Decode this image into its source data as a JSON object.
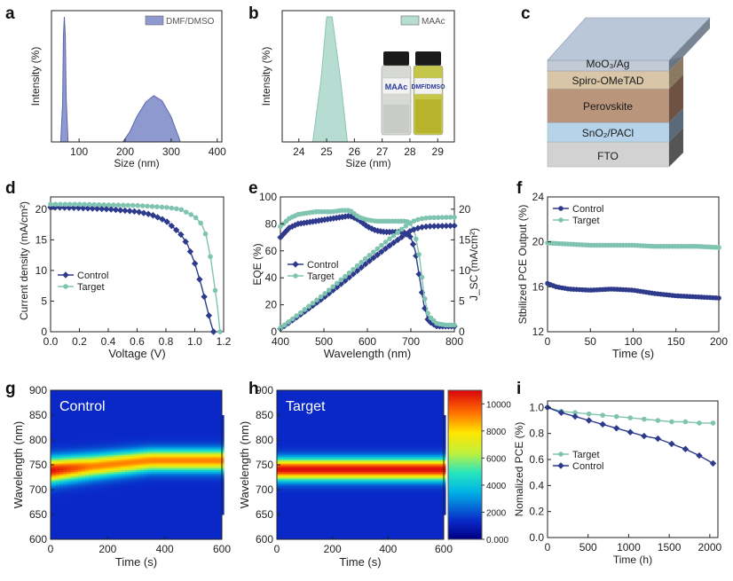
{
  "panels": [
    {
      "id": "a",
      "letter": "a"
    },
    {
      "id": "b",
      "letter": "b"
    },
    {
      "id": "c",
      "letter": "c"
    },
    {
      "id": "d",
      "letter": "d"
    },
    {
      "id": "e",
      "letter": "e"
    },
    {
      "id": "f",
      "letter": "f"
    },
    {
      "id": "g",
      "letter": "g"
    },
    {
      "id": "h",
      "letter": "h"
    },
    {
      "id": "i",
      "letter": "i"
    }
  ],
  "colors": {
    "control": "#2e3a8c",
    "target": "#7fc4b0",
    "dls_a": "#8e99d0",
    "dls_b": "#b7ddd2",
    "axis": "#222222"
  },
  "chart_data": [
    {
      "panel": "a",
      "type": "area",
      "xlabel": "Size (nm)",
      "ylabel": "Intensity (%)",
      "xlim": [
        40,
        410
      ],
      "ylim": [
        0,
        1.05
      ],
      "xticks": [
        100,
        200,
        300,
        400
      ],
      "legend": [
        "DMF/DMSO"
      ],
      "legend_position": "top-right",
      "series": [
        {
          "name": "DMF/DMSO",
          "color": "#8e99d0",
          "points": [
            [
              60,
              0
            ],
            [
              64,
              0.3
            ],
            [
              66,
              0.85
            ],
            [
              68,
              1.0
            ],
            [
              70,
              0.85
            ],
            [
              72,
              0.35
            ],
            [
              76,
              0
            ],
            [
              195,
              0
            ],
            [
              210,
              0.08
            ],
            [
              225,
              0.2
            ],
            [
              245,
              0.32
            ],
            [
              262,
              0.37
            ],
            [
              280,
              0.33
            ],
            [
              300,
              0.2
            ],
            [
              320,
              0
            ],
            [
              410,
              0
            ]
          ]
        }
      ]
    },
    {
      "panel": "b",
      "type": "area",
      "xlabel": "Size (nm)",
      "ylabel": "Intensity (%)",
      "xlim": [
        23.4,
        29.6
      ],
      "ylim": [
        0,
        1.05
      ],
      "xticks": [
        24,
        25,
        26,
        27,
        28,
        29
      ],
      "legend": [
        "MAAc"
      ],
      "legend_position": "top-right",
      "inset": "photo of two vials labeled MAAc and DMF/DMSO",
      "vial_labels": [
        "MAAc",
        "DMF/DMSO"
      ],
      "series": [
        {
          "name": "MAAc",
          "color": "#b7ddd2",
          "points": [
            [
              24.5,
              0
            ],
            [
              24.8,
              0.5
            ],
            [
              25.0,
              1.0
            ],
            [
              25.2,
              1.0
            ],
            [
              25.5,
              0.5
            ],
            [
              25.75,
              0
            ],
            [
              29.6,
              0
            ]
          ]
        }
      ]
    },
    {
      "panel": "c",
      "type": "diagram",
      "layers": [
        "MoO₃/Ag",
        "Spiro-OMeTAD",
        "Perovskite",
        "SnO₂/PACl",
        "FTO"
      ]
    },
    {
      "panel": "d",
      "type": "line",
      "xlabel": "Voltage (V)",
      "ylabel": "Current density (mA/cm²)",
      "xlim": [
        0,
        1.2
      ],
      "ylim": [
        0,
        22
      ],
      "xticks": [
        0.0,
        0.2,
        0.4,
        0.6,
        0.8,
        1.0,
        1.2
      ],
      "yticks": [
        0,
        5,
        10,
        15,
        20
      ],
      "legend": [
        "Control",
        "Target"
      ],
      "legend_position": "bottom-left",
      "series": [
        {
          "name": "Control",
          "color": "#2e3a8c",
          "marker": "diamond",
          "points": [
            [
              0,
              20.3
            ],
            [
              0.2,
              20.2
            ],
            [
              0.4,
              20.0
            ],
            [
              0.6,
              19.6
            ],
            [
              0.7,
              19.1
            ],
            [
              0.8,
              18.1
            ],
            [
              0.9,
              16.0
            ],
            [
              0.95,
              14.2
            ],
            [
              1.0,
              11.2
            ],
            [
              1.05,
              7.2
            ],
            [
              1.08,
              4.3
            ],
            [
              1.11,
              1.5
            ],
            [
              1.13,
              0
            ]
          ]
        },
        {
          "name": "Target",
          "color": "#7fc4b0",
          "marker": "circle",
          "points": [
            [
              0,
              20.8
            ],
            [
              0.2,
              20.8
            ],
            [
              0.4,
              20.7
            ],
            [
              0.6,
              20.6
            ],
            [
              0.8,
              20.3
            ],
            [
              0.9,
              20.0
            ],
            [
              1.0,
              18.8
            ],
            [
              1.05,
              17.5
            ],
            [
              1.08,
              15.6
            ],
            [
              1.11,
              12.0
            ],
            [
              1.14,
              7.0
            ],
            [
              1.16,
              3.5
            ],
            [
              1.175,
              0
            ]
          ]
        }
      ]
    },
    {
      "panel": "e",
      "type": "line",
      "xlabel": "Wavelength (nm)",
      "ylabel": "EQE (%)",
      "ylabel_right": "J_SC (mA/cm²)",
      "xlim": [
        400,
        800
      ],
      "ylim": [
        0,
        100
      ],
      "ylim_right": [
        0,
        22
      ],
      "xticks": [
        400,
        500,
        600,
        700,
        800
      ],
      "yticks": [
        0,
        20,
        40,
        60,
        80,
        100
      ],
      "yticks_right": [
        0,
        5,
        10,
        15,
        20
      ],
      "legend": [
        "Control",
        "Target"
      ],
      "legend_position": "bottom-left",
      "series": [
        {
          "name": "Control",
          "axis": "left",
          "color": "#2e3a8c",
          "marker": "diamond",
          "points": [
            [
              400,
              70
            ],
            [
              420,
              77
            ],
            [
              440,
              80
            ],
            [
              460,
              81
            ],
            [
              480,
              82
            ],
            [
              500,
              83
            ],
            [
              520,
              84
            ],
            [
              540,
              85
            ],
            [
              560,
              86
            ],
            [
              580,
              83
            ],
            [
              600,
              78
            ],
            [
              620,
              75
            ],
            [
              640,
              74
            ],
            [
              660,
              74
            ],
            [
              680,
              74
            ],
            [
              690,
              73
            ],
            [
              700,
              70
            ],
            [
              710,
              60
            ],
            [
              720,
              40
            ],
            [
              730,
              20
            ],
            [
              740,
              8
            ],
            [
              760,
              4
            ],
            [
              780,
              4
            ],
            [
              800,
              4
            ]
          ]
        },
        {
          "name": "Target",
          "axis": "left",
          "color": "#7fc4b0",
          "marker": "circle",
          "points": [
            [
              400,
              78
            ],
            [
              420,
              84
            ],
            [
              440,
              87
            ],
            [
              460,
              88
            ],
            [
              480,
              89
            ],
            [
              500,
              89
            ],
            [
              520,
              89
            ],
            [
              540,
              90
            ],
            [
              560,
              90
            ],
            [
              580,
              85
            ],
            [
              600,
              83
            ],
            [
              620,
              82
            ],
            [
              640,
              82
            ],
            [
              660,
              82
            ],
            [
              680,
              82
            ],
            [
              690,
              82
            ],
            [
              700,
              80
            ],
            [
              710,
              72
            ],
            [
              720,
              55
            ],
            [
              730,
              28
            ],
            [
              740,
              12
            ],
            [
              760,
              6
            ],
            [
              780,
              5
            ],
            [
              800,
              5
            ]
          ]
        },
        {
          "name": "Control",
          "axis": "right",
          "color": "#2e3a8c",
          "marker": "diamond",
          "points": [
            [
              400,
              0.5
            ],
            [
              450,
              3.0
            ],
            [
              500,
              5.6
            ],
            [
              550,
              8.4
            ],
            [
              600,
              11.3
            ],
            [
              650,
              14.0
            ],
            [
              700,
              16.5
            ],
            [
              720,
              17.0
            ],
            [
              740,
              17.2
            ],
            [
              800,
              17.3
            ]
          ]
        },
        {
          "name": "Target",
          "axis": "right",
          "color": "#7fc4b0",
          "marker": "circle",
          "points": [
            [
              400,
              0.6
            ],
            [
              450,
              3.3
            ],
            [
              500,
              6.1
            ],
            [
              550,
              9.1
            ],
            [
              600,
              12.2
            ],
            [
              650,
              15.1
            ],
            [
              700,
              17.9
            ],
            [
              720,
              18.4
            ],
            [
              740,
              18.6
            ],
            [
              800,
              18.7
            ]
          ]
        }
      ]
    },
    {
      "panel": "f",
      "type": "line",
      "xlabel": "Time (s)",
      "ylabel": "Stbilized PCE Output (%)",
      "xlim": [
        0,
        200
      ],
      "ylim": [
        12,
        24
      ],
      "xticks": [
        0,
        50,
        100,
        150,
        200
      ],
      "yticks": [
        12,
        16,
        20,
        24
      ],
      "legend": [
        "Control",
        "Target"
      ],
      "legend_position": "top-left",
      "series": [
        {
          "name": "Control",
          "color": "#2e3a8c",
          "marker": "circle",
          "points": [
            [
              0,
              16.3
            ],
            [
              10,
              16.0
            ],
            [
              25,
              15.8
            ],
            [
              50,
              15.7
            ],
            [
              75,
              15.8
            ],
            [
              100,
              15.7
            ],
            [
              125,
              15.4
            ],
            [
              150,
              15.2
            ],
            [
              175,
              15.1
            ],
            [
              200,
              15.0
            ]
          ]
        },
        {
          "name": "Target",
          "color": "#7fc4b0",
          "marker": "circle",
          "points": [
            [
              0,
              19.9
            ],
            [
              25,
              19.8
            ],
            [
              50,
              19.7
            ],
            [
              75,
              19.7
            ],
            [
              100,
              19.7
            ],
            [
              125,
              19.6
            ],
            [
              150,
              19.6
            ],
            [
              175,
              19.6
            ],
            [
              200,
              19.5
            ]
          ]
        }
      ]
    },
    {
      "panel": "g",
      "type": "heatmap",
      "title": "Control",
      "xlabel": "Time (s)",
      "ylabel": "Wavelength (nm)",
      "xlim": [
        0,
        600
      ],
      "ylim": [
        600,
        900
      ],
      "xticks": [
        0,
        200,
        400,
        600
      ],
      "yticks": [
        600,
        650,
        700,
        750,
        800,
        850,
        900
      ],
      "peak_center_start_nm": 738,
      "peak_center_end_nm": 758,
      "peak_width_start_nm": 25,
      "peak_width_end_nm": 22
    },
    {
      "panel": "h",
      "type": "heatmap",
      "title": "Target",
      "xlabel": "Time (s)",
      "ylabel": "Wavelength (nm)",
      "xlim": [
        0,
        600
      ],
      "ylim": [
        600,
        900
      ],
      "xticks": [
        0,
        200,
        400,
        600
      ],
      "yticks": [
        600,
        650,
        700,
        750,
        800,
        850,
        900
      ],
      "peak_center_start_nm": 740,
      "peak_center_end_nm": 740,
      "peak_width_start_nm": 22,
      "peak_width_end_nm": 22,
      "colorbar": {
        "min": 0,
        "max": 11000,
        "ticks": [
          "0.000",
          "2000",
          "4000",
          "6000",
          "8000",
          "10000"
        ],
        "tick_values": [
          0,
          2000,
          4000,
          6000,
          8000,
          10000
        ]
      }
    },
    {
      "panel": "i",
      "type": "line",
      "xlabel": "Time (h)",
      "ylabel": "Nomalized PCE (%)",
      "xlim": [
        0,
        2100
      ],
      "ylim": [
        0,
        1.05
      ],
      "xticks": [
        0,
        500,
        1000,
        1500,
        2000
      ],
      "yticks": [
        "0.0",
        "0.2",
        "0.4",
        "0.6",
        "0.8",
        "1.0"
      ],
      "ytick_values": [
        0,
        0.2,
        0.4,
        0.6,
        0.8,
        1.0
      ],
      "legend": [
        "Target",
        "Control"
      ],
      "legend_position": "bottom-left",
      "series": [
        {
          "name": "Target",
          "color": "#7fc4b0",
          "marker": "circle",
          "points": [
            [
              0,
              1.0
            ],
            [
              170,
              0.97
            ],
            [
              340,
              0.96
            ],
            [
              510,
              0.95
            ],
            [
              680,
              0.94
            ],
            [
              850,
              0.93
            ],
            [
              1020,
              0.92
            ],
            [
              1190,
              0.91
            ],
            [
              1360,
              0.9
            ],
            [
              1530,
              0.89
            ],
            [
              1700,
              0.89
            ],
            [
              1870,
              0.88
            ],
            [
              2040,
              0.88
            ]
          ]
        },
        {
          "name": "Control",
          "color": "#2e3a8c",
          "marker": "diamond",
          "points": [
            [
              0,
              1.0
            ],
            [
              170,
              0.96
            ],
            [
              340,
              0.93
            ],
            [
              510,
              0.9
            ],
            [
              680,
              0.87
            ],
            [
              850,
              0.84
            ],
            [
              1020,
              0.81
            ],
            [
              1190,
              0.78
            ],
            [
              1360,
              0.76
            ],
            [
              1530,
              0.72
            ],
            [
              1700,
              0.68
            ],
            [
              1870,
              0.63
            ],
            [
              2040,
              0.57
            ]
          ]
        }
      ]
    }
  ]
}
